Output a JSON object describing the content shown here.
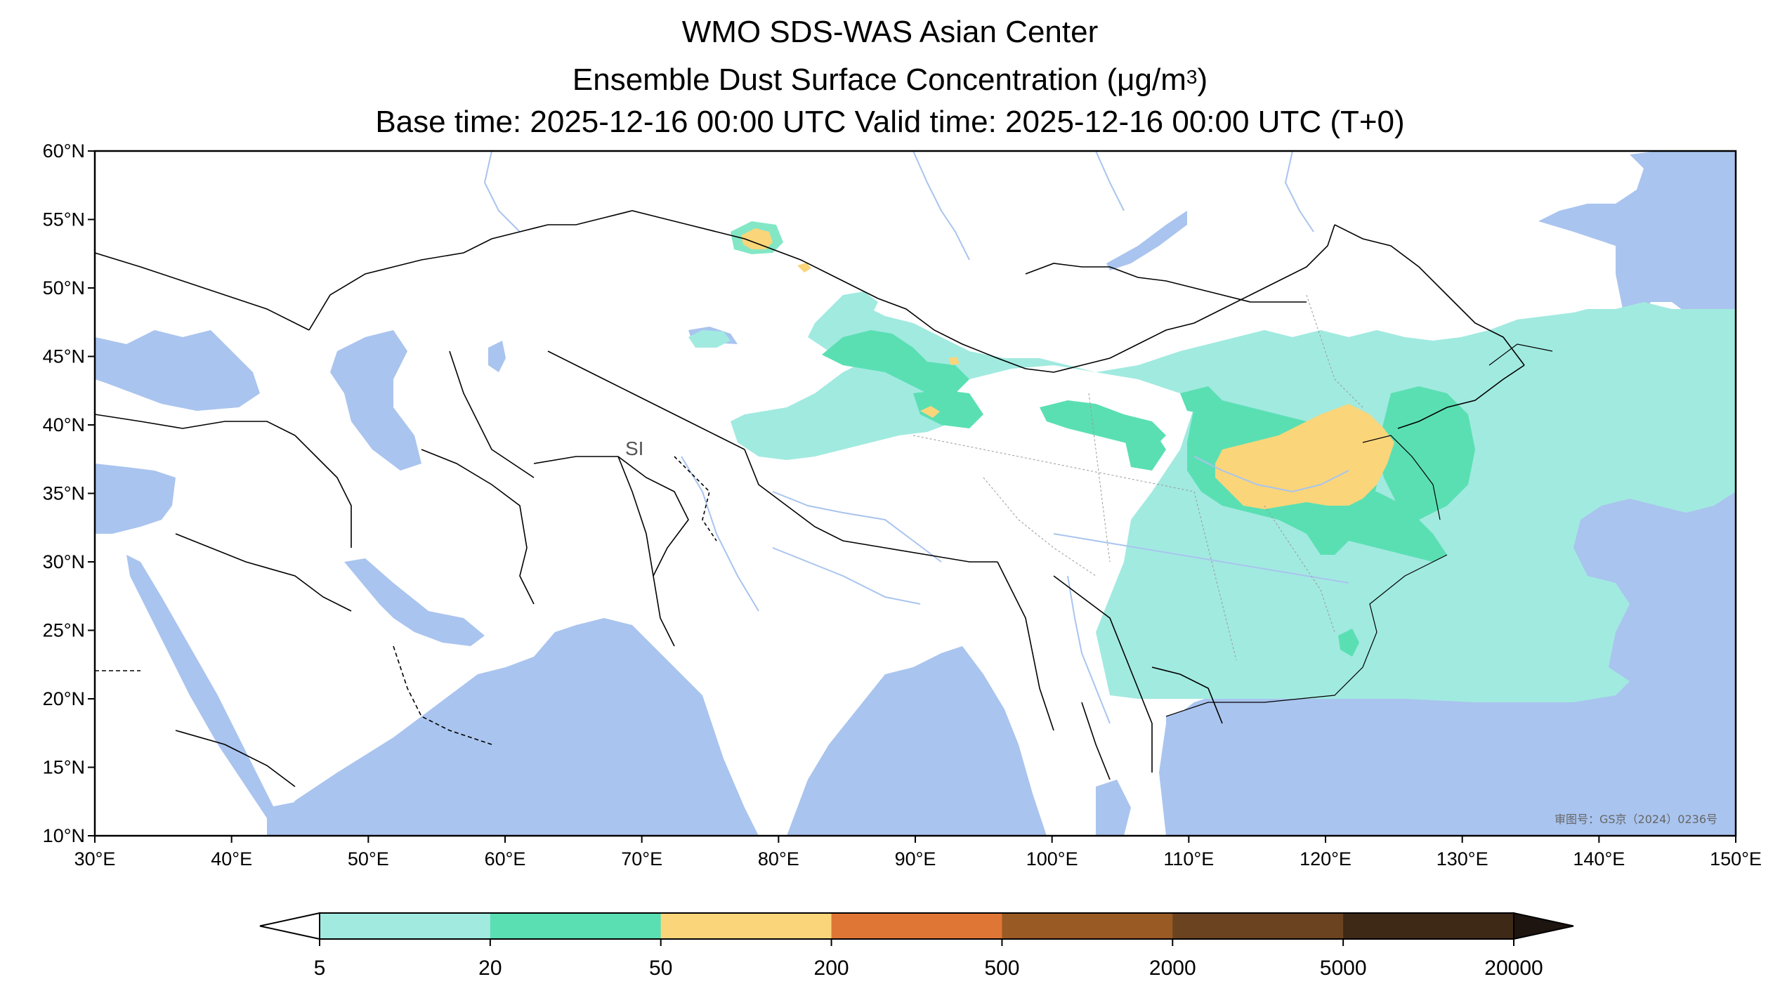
{
  "title": {
    "line1": "WMO SDS-WAS Asian Center",
    "line2_prefix": "Ensemble Dust Surface Concentration (",
    "line2_unit_mu": "μ",
    "line2_unit_rest": "g/m",
    "line2_sup": "3",
    "line2_suffix": ")",
    "line3": "Base time: 2025-12-16 00:00 UTC Valid time: 2025-12-16 00:00 UTC (T+0)"
  },
  "map": {
    "lon_range": [
      30,
      150
    ],
    "lat_range": [
      10,
      60
    ],
    "lon_ticks": [
      "30°E",
      "40°E",
      "50°E",
      "60°E",
      "70°E",
      "80°E",
      "90°E",
      "100°E",
      "110°E",
      "120°E",
      "130°E",
      "140°E",
      "150°E"
    ],
    "lat_ticks": [
      "60°N",
      "55°N",
      "50°N",
      "45°N",
      "40°N",
      "35°N",
      "30°N",
      "25°N",
      "20°N",
      "15°N",
      "10°N"
    ],
    "ocean_color": "#a9c4ee",
    "land_color": "#ffffff",
    "border_color": "#000000",
    "river_color": "#a9c4ee",
    "stamp": "审图号：GS京（2024）0236号",
    "region_label": "SI"
  },
  "colorbar": {
    "levels": [
      "5",
      "20",
      "50",
      "200",
      "500",
      "2000",
      "5000",
      "20000"
    ],
    "colors": [
      "#a1eae0",
      "#5adfb3",
      "#fad57a",
      "#e07636",
      "#9a5a24",
      "#6b4320",
      "#3e2816"
    ],
    "under_color": "#ffffff",
    "over_color": "#1e1410"
  }
}
